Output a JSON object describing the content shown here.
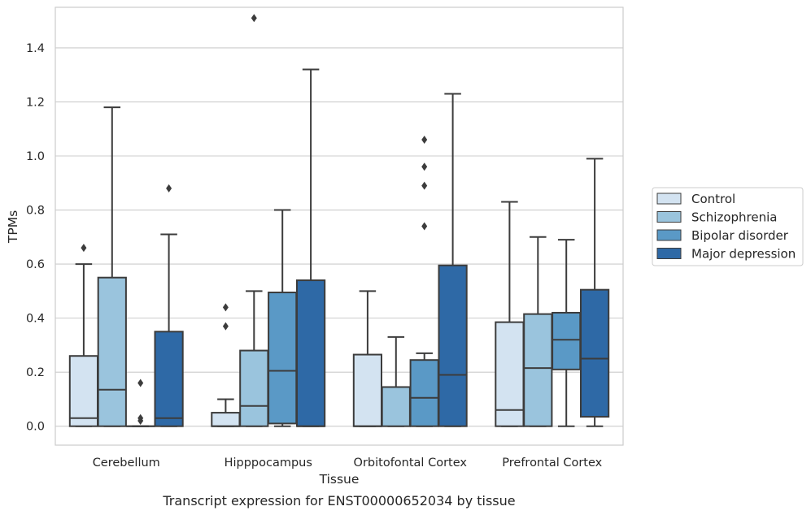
{
  "chart_data": {
    "type": "box",
    "ylabel": "TPMs",
    "xlabel": "Tissue",
    "caption": "Transcript expression for ENST00000652034 by tissue",
    "ylim": [
      -0.07,
      1.55
    ],
    "yticks": [
      "0.0",
      "0.2",
      "0.4",
      "0.6",
      "0.8",
      "1.0",
      "1.2",
      "1.4"
    ],
    "grid": true,
    "legend_position": "right",
    "categories": [
      "Cerebellum",
      "Hipppocampus",
      "Orbitofontal Cortex",
      "Prefrontal Cortex"
    ],
    "series": [
      {
        "name": "Control",
        "color": "#d3e3f1",
        "boxes": [
          {
            "q1": 0.0,
            "median": 0.03,
            "q3": 0.26,
            "whislo": 0.0,
            "whishi": 0.6,
            "fliers": [
              0.66
            ]
          },
          {
            "q1": 0.0,
            "median": 0.0,
            "q3": 0.05,
            "whislo": 0.0,
            "whishi": 0.1,
            "fliers": [
              0.37,
              0.44
            ]
          },
          {
            "q1": 0.0,
            "median": 0.0,
            "q3": 0.265,
            "whislo": 0.0,
            "whishi": 0.5,
            "fliers": []
          },
          {
            "q1": 0.0,
            "median": 0.06,
            "q3": 0.385,
            "whislo": 0.0,
            "whishi": 0.83,
            "fliers": []
          }
        ]
      },
      {
        "name": "Schizophrenia",
        "color": "#9ac4dd",
        "boxes": [
          {
            "q1": 0.0,
            "median": 0.135,
            "q3": 0.55,
            "whislo": 0.0,
            "whishi": 1.18,
            "fliers": []
          },
          {
            "q1": 0.0,
            "median": 0.075,
            "q3": 0.28,
            "whislo": 0.0,
            "whishi": 0.5,
            "fliers": [
              1.51
            ]
          },
          {
            "q1": 0.0,
            "median": 0.145,
            "q3": 0.145,
            "whislo": 0.0,
            "whishi": 0.33,
            "fliers": []
          },
          {
            "q1": 0.0,
            "median": 0.215,
            "q3": 0.415,
            "whislo": 0.0,
            "whishi": 0.7,
            "fliers": []
          }
        ]
      },
      {
        "name": "Bipolar disorder",
        "color": "#5a99c6",
        "boxes": [
          {
            "q1": 0.0,
            "median": 0.0,
            "q3": 0.0,
            "whislo": 0.0,
            "whishi": 0.0,
            "fliers": [
              0.02,
              0.03,
              0.16
            ]
          },
          {
            "q1": 0.01,
            "median": 0.205,
            "q3": 0.495,
            "whislo": 0.0,
            "whishi": 0.8,
            "fliers": []
          },
          {
            "q1": 0.0,
            "median": 0.105,
            "q3": 0.245,
            "whislo": 0.0,
            "whishi": 0.27,
            "fliers": [
              0.74,
              0.89,
              0.96,
              1.06
            ]
          },
          {
            "q1": 0.21,
            "median": 0.32,
            "q3": 0.42,
            "whislo": 0.0,
            "whishi": 0.69,
            "fliers": []
          }
        ]
      },
      {
        "name": "Major depression",
        "color": "#2e69a6",
        "boxes": [
          {
            "q1": 0.0,
            "median": 0.03,
            "q3": 0.35,
            "whislo": 0.0,
            "whishi": 0.71,
            "fliers": [
              0.88
            ]
          },
          {
            "q1": 0.0,
            "median": 0.0,
            "q3": 0.54,
            "whislo": 0.0,
            "whishi": 1.32,
            "fliers": []
          },
          {
            "q1": 0.0,
            "median": 0.19,
            "q3": 0.595,
            "whislo": 0.0,
            "whishi": 1.23,
            "fliers": []
          },
          {
            "q1": 0.035,
            "median": 0.25,
            "q3": 0.505,
            "whislo": 0.0,
            "whishi": 0.99,
            "fliers": []
          }
        ]
      }
    ]
  }
}
